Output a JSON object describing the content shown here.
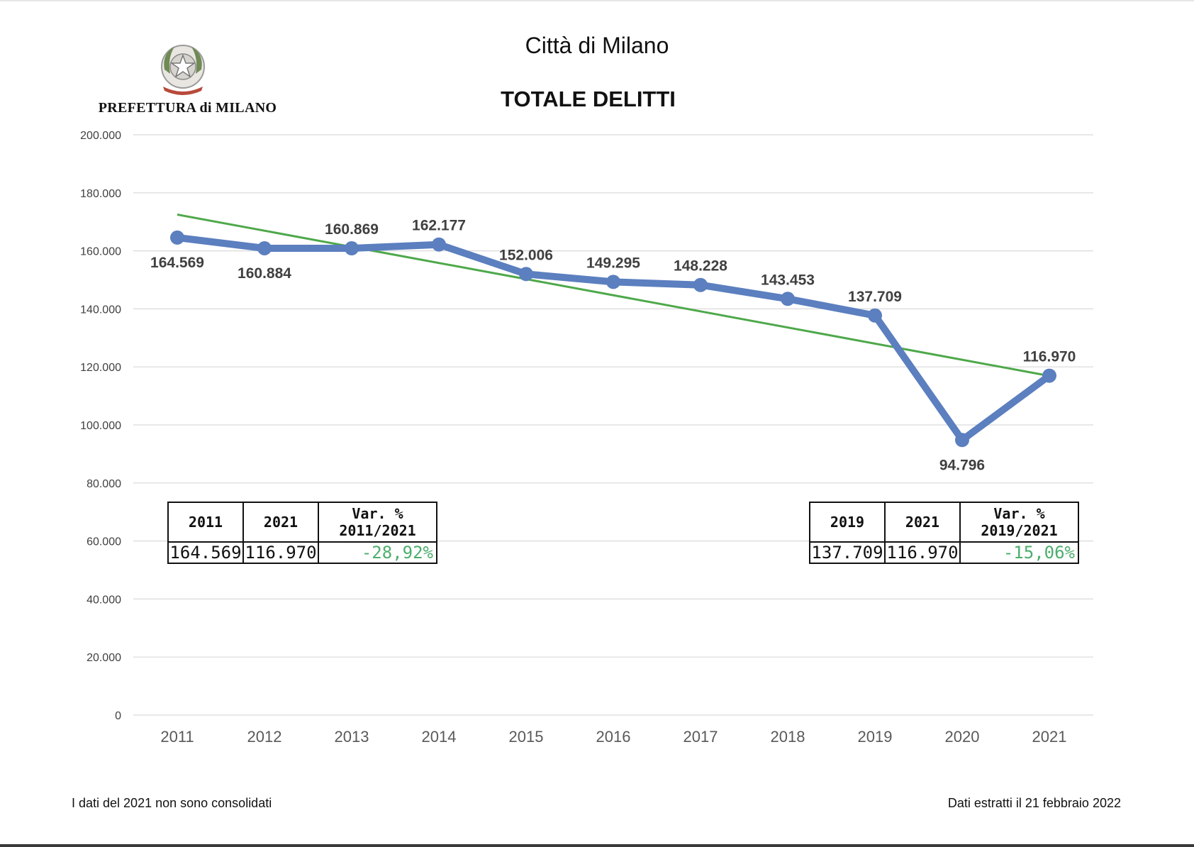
{
  "header": {
    "city_title": "Città di Milano",
    "institution": "PREFETTURA di MILANO",
    "emblem": "repubblica-italiana-emblem"
  },
  "chart_data": {
    "type": "line",
    "title": "TOTALE DELITTI",
    "xlabel": "",
    "ylabel": "",
    "categories": [
      "2011",
      "2012",
      "2013",
      "2014",
      "2015",
      "2016",
      "2017",
      "2018",
      "2019",
      "2020",
      "2021"
    ],
    "series": [
      {
        "values": [
          164569,
          160884,
          160869,
          162177,
          152006,
          149295,
          148228,
          143453,
          137709,
          94796,
          116970
        ],
        "data_labels": [
          "164.569",
          "160.884",
          "160.869",
          "162.177",
          "152.006",
          "149.295",
          "148.228",
          "143.453",
          "137.709",
          "94.796",
          "116.970"
        ],
        "color": "#5b7fbf"
      }
    ],
    "trendline": {
      "type": "linear",
      "color": "#4ea84a",
      "start": 172500,
      "end": 116900
    },
    "ylim": [
      0,
      200000
    ],
    "yticks": [
      0,
      20000,
      40000,
      60000,
      80000,
      100000,
      120000,
      140000,
      160000,
      180000,
      200000
    ],
    "ytick_labels": [
      "0",
      "20.000",
      "40.000",
      "60.000",
      "80.000",
      "100.000",
      "120.000",
      "140.000",
      "160.000",
      "180.000",
      "200.000"
    ],
    "grid": true,
    "legend": "none"
  },
  "tables": {
    "left": {
      "headers": [
        "2011",
        "2021",
        "Var. %",
        "2011/2021"
      ],
      "values": [
        "164.569",
        "116.970",
        "-28,92%"
      ]
    },
    "right": {
      "headers": [
        "2019",
        "2021",
        "Var. %",
        "2019/2021"
      ],
      "values": [
        "137.709",
        "116.970",
        "-15,06%"
      ]
    }
  },
  "footer": {
    "note_left": "I dati del 2021 non sono consolidati",
    "note_right": "Dati estratti il 21 febbraio 2022"
  },
  "colors": {
    "series": "#5b7fbf",
    "trendline": "#4ea84a",
    "variation_text": "#4cae6c",
    "gridline": "#d9d9d9"
  }
}
